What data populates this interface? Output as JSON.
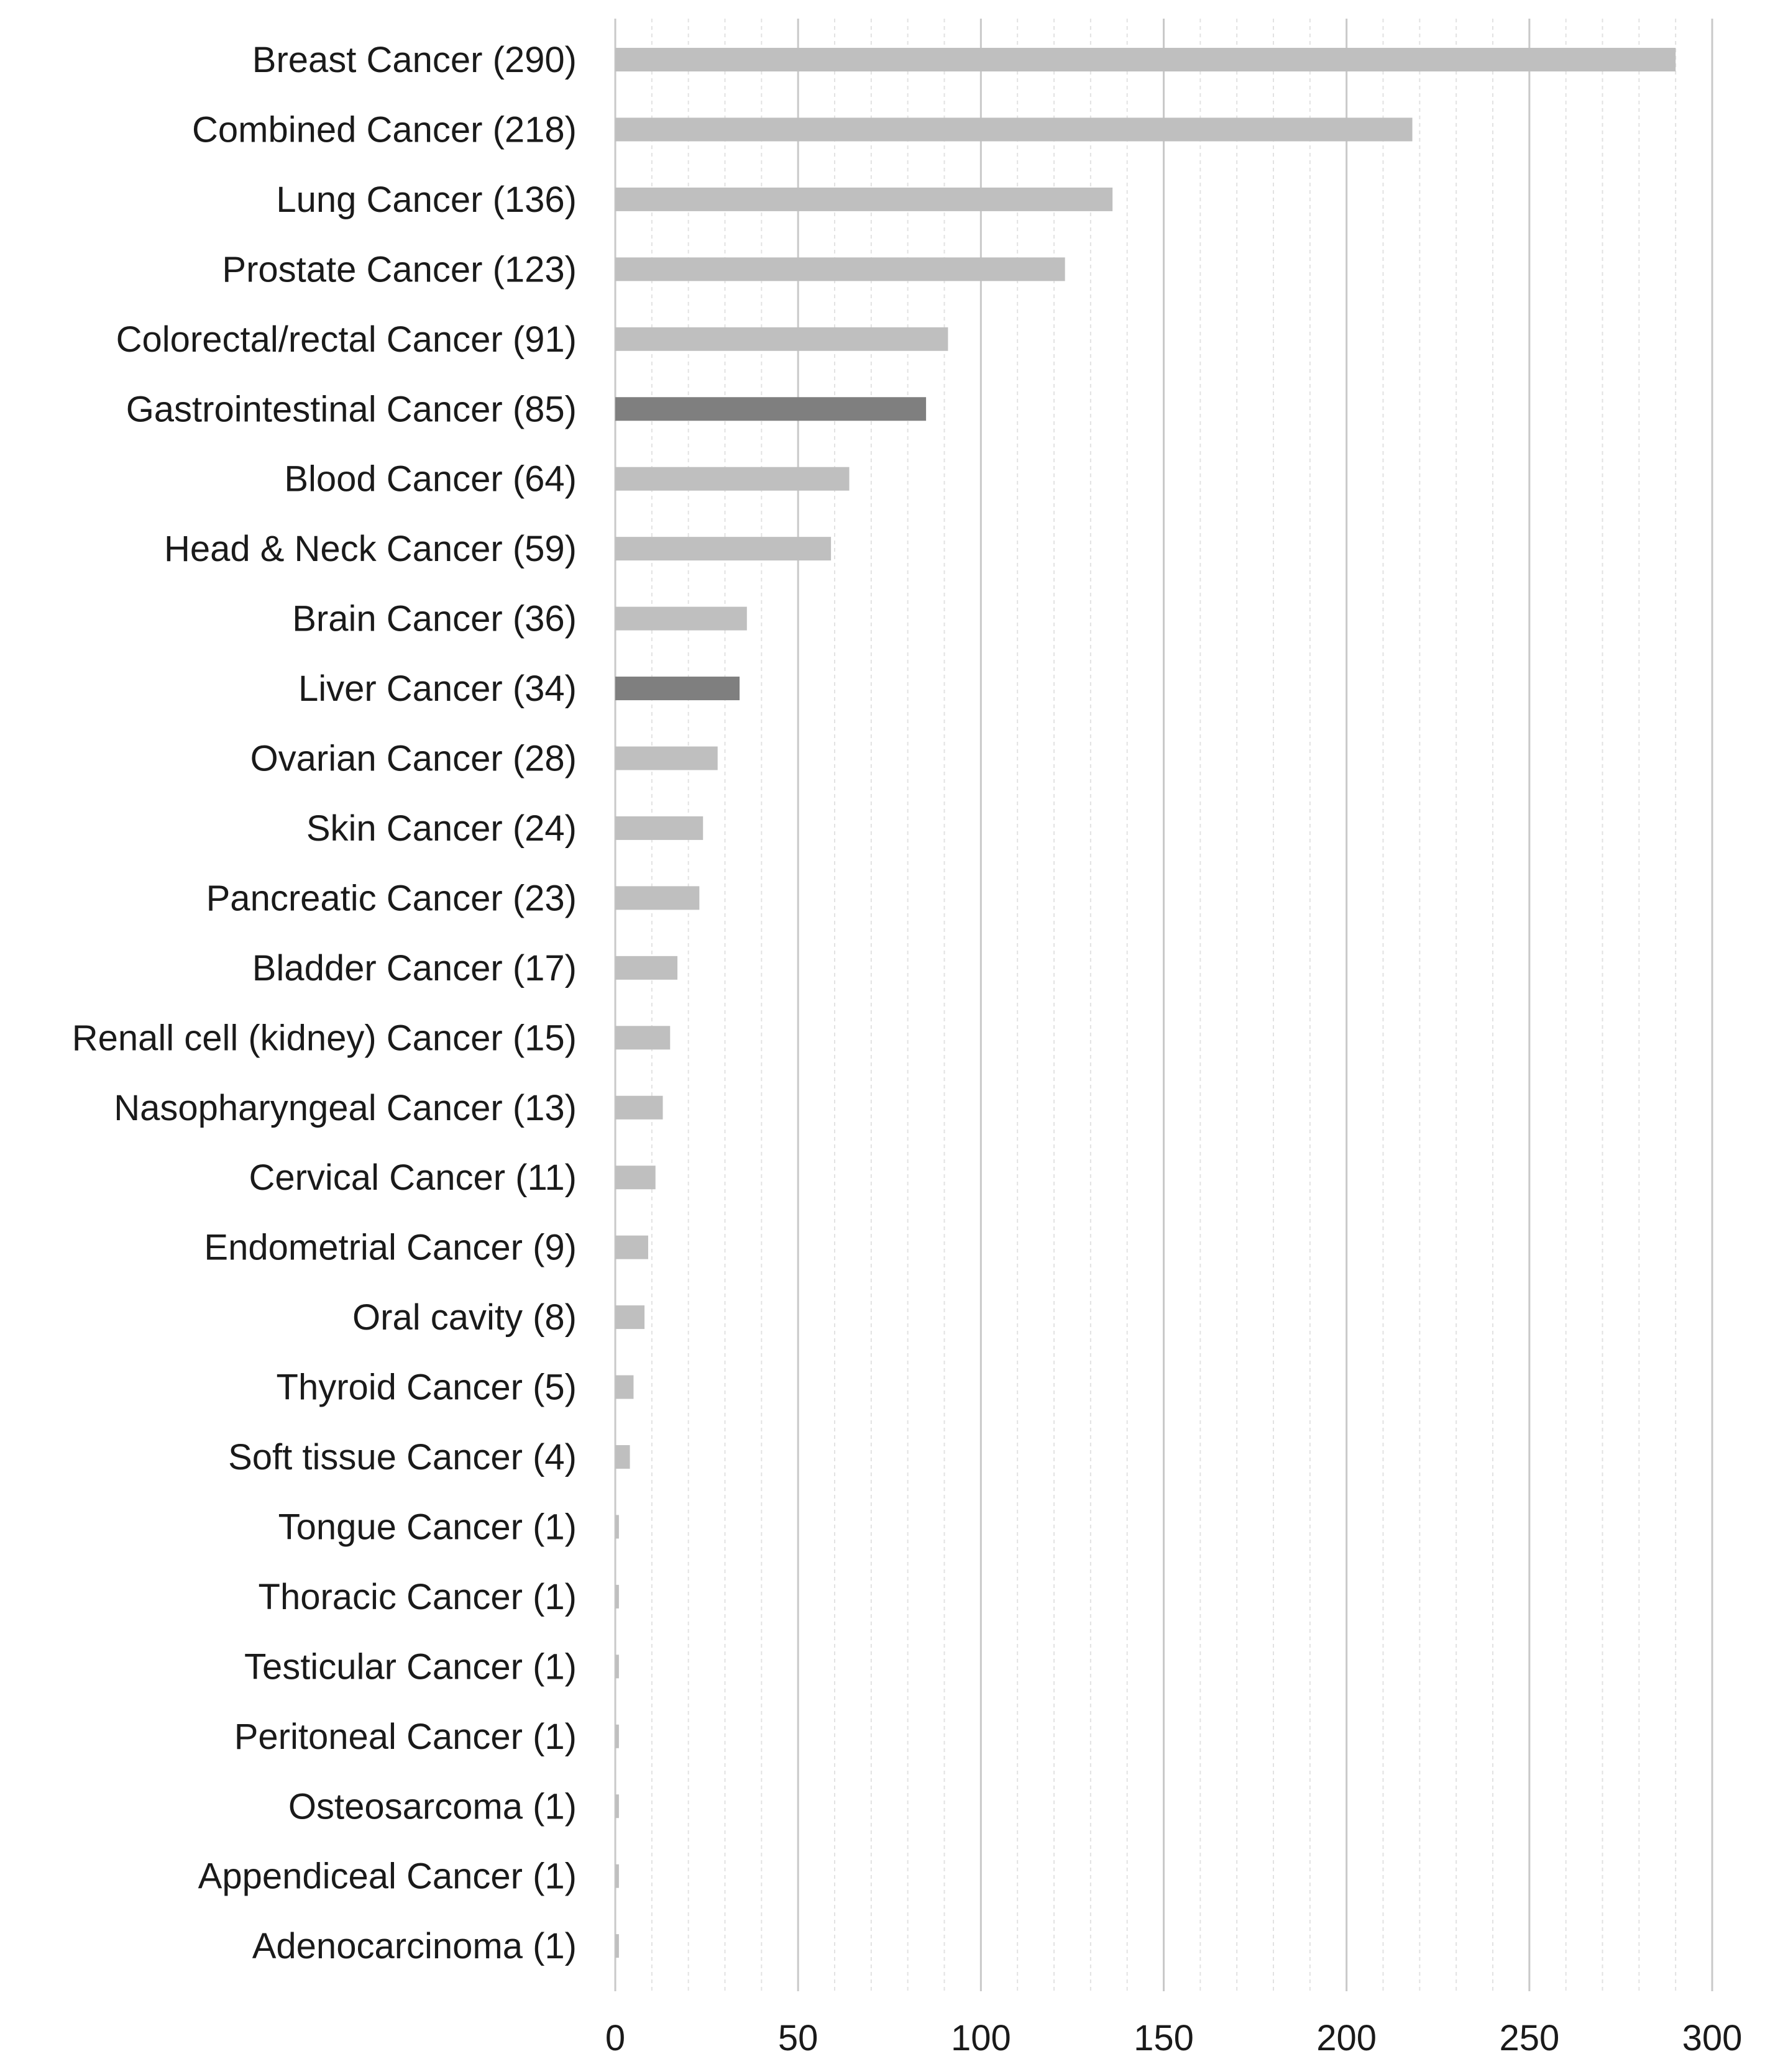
{
  "chart_data": {
    "type": "bar",
    "orientation": "horizontal",
    "title": "",
    "xlabel": "",
    "ylabel": "",
    "xlim": [
      0,
      300
    ],
    "major_ticks": [
      0,
      50,
      100,
      150,
      200,
      250,
      300
    ],
    "minor_tick_step": 10,
    "grid": true,
    "legend": "none",
    "colors": {
      "default": "#bfbfbf",
      "highlight": "#7f7f7f",
      "grid_major": "#c9c9c9",
      "grid_minor": "#e2e2e2"
    },
    "bars": [
      {
        "label": "Breast Cancer (290)",
        "value": 290,
        "highlight": false
      },
      {
        "label": "Combined Cancer (218)",
        "value": 218,
        "highlight": false
      },
      {
        "label": "Lung Cancer (136)",
        "value": 136,
        "highlight": false
      },
      {
        "label": "Prostate Cancer (123)",
        "value": 123,
        "highlight": false
      },
      {
        "label": "Colorectal/rectal Cancer (91)",
        "value": 91,
        "highlight": false
      },
      {
        "label": "Gastrointestinal Cancer (85)",
        "value": 85,
        "highlight": true
      },
      {
        "label": "Blood Cancer (64)",
        "value": 64,
        "highlight": false
      },
      {
        "label": "Head & Neck Cancer (59)",
        "value": 59,
        "highlight": false
      },
      {
        "label": "Brain Cancer (36)",
        "value": 36,
        "highlight": false
      },
      {
        "label": "Liver Cancer (34)",
        "value": 34,
        "highlight": true
      },
      {
        "label": "Ovarian Cancer (28)",
        "value": 28,
        "highlight": false
      },
      {
        "label": "Skin Cancer (24)",
        "value": 24,
        "highlight": false
      },
      {
        "label": "Pancreatic Cancer (23)",
        "value": 23,
        "highlight": false
      },
      {
        "label": "Bladder Cancer (17)",
        "value": 17,
        "highlight": false
      },
      {
        "label": "Renall cell (kidney) Cancer (15)",
        "value": 15,
        "highlight": false
      },
      {
        "label": "Nasopharyngeal Cancer (13)",
        "value": 13,
        "highlight": false
      },
      {
        "label": "Cervical Cancer (11)",
        "value": 11,
        "highlight": false
      },
      {
        "label": "Endometrial Cancer (9)",
        "value": 9,
        "highlight": false
      },
      {
        "label": "Oral cavity (8)",
        "value": 8,
        "highlight": false
      },
      {
        "label": "Thyroid Cancer (5)",
        "value": 5,
        "highlight": false
      },
      {
        "label": "Soft tissue Cancer (4)",
        "value": 4,
        "highlight": false
      },
      {
        "label": "Tongue Cancer (1)",
        "value": 1,
        "highlight": false
      },
      {
        "label": "Thoracic Cancer (1)",
        "value": 1,
        "highlight": false
      },
      {
        "label": "Testicular Cancer (1)",
        "value": 1,
        "highlight": false
      },
      {
        "label": "Peritoneal Cancer (1)",
        "value": 1,
        "highlight": false
      },
      {
        "label": "Osteosarcoma (1)",
        "value": 1,
        "highlight": false
      },
      {
        "label": "Appendiceal Cancer (1)",
        "value": 1,
        "highlight": false
      },
      {
        "label": "Adenocarcinoma (1)",
        "value": 1,
        "highlight": false
      }
    ]
  }
}
